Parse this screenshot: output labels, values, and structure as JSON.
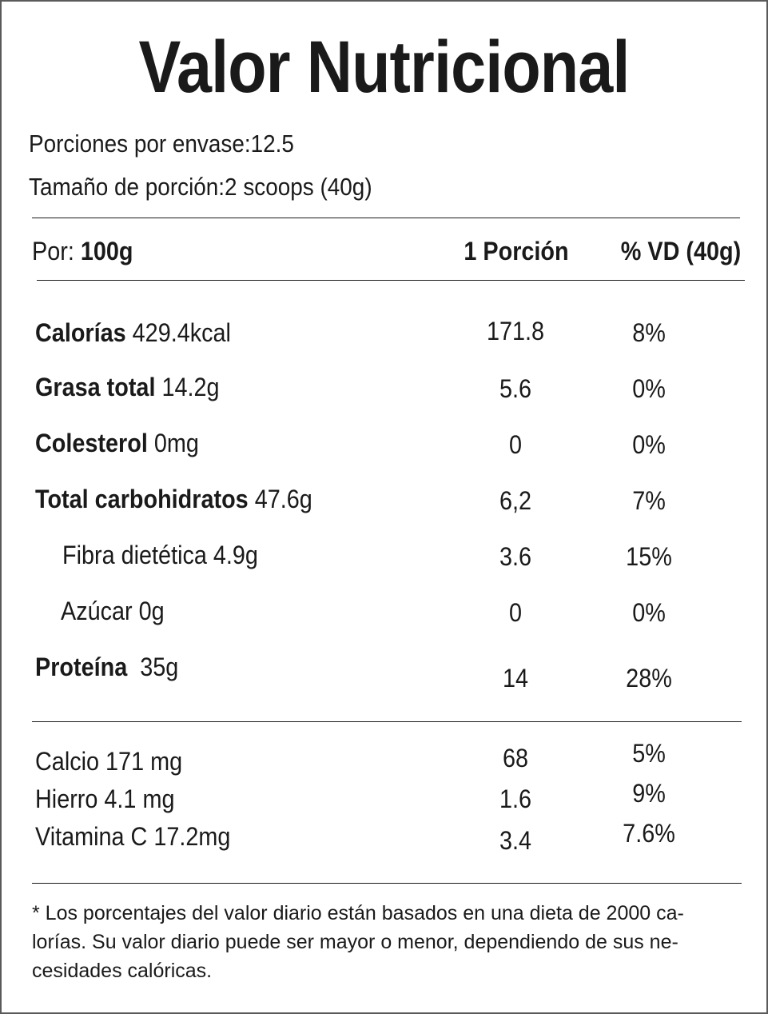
{
  "title": "Valor Nutricional",
  "servings": {
    "per_container_label": "Porciones por envase:",
    "per_container_value": "12.5",
    "size_label": "Tamaño de porción:",
    "size_value": "2 scoops (40g)"
  },
  "header": {
    "per_label": "Por:",
    "per_value": "100g",
    "portion_col": "1 Porción",
    "dv_col": "% VD (40g)"
  },
  "nutrients": [
    {
      "name": "Calorías",
      "amount": "429.4kcal",
      "portion": "171.8",
      "dv": "8%"
    },
    {
      "name": "Grasa total",
      "amount": "14.2g",
      "portion": "5.6",
      "dv": "0%"
    },
    {
      "name": "Colesterol",
      "amount": "0mg",
      "portion": "0",
      "dv": "0%"
    },
    {
      "name": "Total carbohidratos",
      "amount": "47.6g",
      "portion": "6,2",
      "dv": "7%"
    },
    {
      "name": "Fibra dietética 4.9g",
      "portion": "3.6",
      "dv": "15%"
    },
    {
      "name": "Azúcar 0g",
      "portion": "0",
      "dv": "0%"
    },
    {
      "name": "Proteína",
      "amount": "35g",
      "portion": "14",
      "dv": "28%"
    }
  ],
  "minerals": [
    {
      "name": "Calcio  171 mg",
      "portion": "68",
      "dv": "5%"
    },
    {
      "name": "Hierro 4.1 mg",
      "portion": "1.6",
      "dv": "9%"
    },
    {
      "name": "Vitamina C 17.2mg",
      "portion": "3.4",
      "dv": "7.6%"
    }
  ],
  "footnote": {
    "line1": "* Los porcentajes del valor diario están basados en una dieta de 2000 ca-",
    "line2": "lorías. Su valor diario puede ser mayor o menor, dependiendo de sus ne-",
    "line3": "cesidades calóricas."
  }
}
